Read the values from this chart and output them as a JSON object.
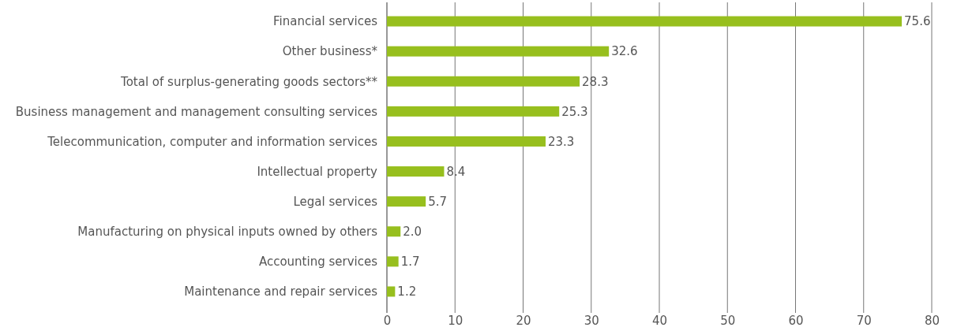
{
  "chart_data": {
    "type": "bar",
    "orientation": "horizontal",
    "categories": [
      "Financial services",
      "Other business*",
      "Total of surplus-generating goods sectors**",
      "Business management and management consulting services",
      "Telecommunication, computer and information services",
      "Intellectual property",
      "Legal services",
      "Manufacturing on physical inputs owned by others",
      "Accounting services",
      "Maintenance and repair services"
    ],
    "values": [
      75.6,
      32.6,
      28.3,
      25.3,
      23.3,
      8.4,
      5.7,
      2.0,
      1.7,
      1.2
    ],
    "value_labels": [
      "75.6",
      "32.6",
      "28.3",
      "25.3",
      "23.3",
      "8.4",
      "5.7",
      "2.0",
      "1.7",
      "1.2"
    ],
    "color": "#97bf1e",
    "xlim": [
      0,
      80
    ],
    "xticks": [
      0,
      10,
      20,
      30,
      40,
      50,
      60,
      70,
      80
    ],
    "grid": "x"
  }
}
